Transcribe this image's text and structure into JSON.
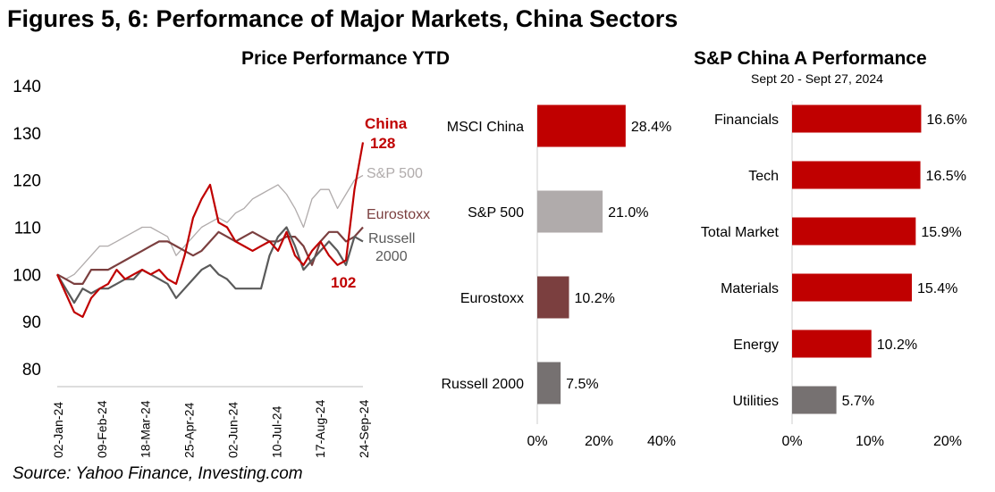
{
  "title": "Figures 5, 6: Performance of Major Markets, China Sectors",
  "source": "Source: Yahoo Finance, Investing.com",
  "chart_data": [
    {
      "type": "line",
      "title": "Price Performance YTD",
      "ylim": [
        80,
        140
      ],
      "yticks": [
        80,
        90,
        100,
        110,
        120,
        130,
        140
      ],
      "xticks": [
        "02-Jan-24",
        "09-Feb-24",
        "18-Mar-24",
        "25-Apr-24",
        "02-Jun-24",
        "10-Jul-24",
        "17-Aug-24",
        "24-Sep-24"
      ],
      "series": [
        {
          "name": "S&P 500",
          "color": "#b0abab",
          "values": [
            100,
            99,
            100,
            102,
            104,
            106,
            106,
            107,
            108,
            109,
            110,
            110,
            109,
            108,
            104,
            106,
            108,
            110,
            111,
            112,
            111,
            113,
            114,
            116,
            117,
            118,
            119,
            117,
            114,
            110,
            116,
            118,
            118,
            114,
            117,
            120,
            121
          ]
        },
        {
          "name": "Eurostoxx",
          "color": "#7b3f3f",
          "values": [
            100,
            99,
            98,
            98,
            101,
            101,
            101,
            102,
            103,
            104,
            105,
            106,
            107,
            107,
            106,
            105,
            104,
            105,
            107,
            109,
            108,
            107,
            108,
            109,
            108,
            107,
            107,
            108,
            108,
            106,
            102,
            107,
            109,
            109,
            107,
            108,
            110
          ]
        },
        {
          "name": "Russell 2000",
          "color": "#5a5a5a",
          "values": [
            100,
            97,
            94,
            97,
            96,
            97,
            97,
            98,
            99,
            99,
            101,
            100,
            99,
            98,
            95,
            97,
            99,
            101,
            102,
            100,
            99,
            97,
            97,
            97,
            97,
            104,
            108,
            110,
            106,
            101,
            103,
            105,
            107,
            105,
            102,
            108,
            107
          ]
        },
        {
          "name": "China",
          "color": "#c00000",
          "values": [
            100,
            96,
            92,
            91,
            95,
            97,
            98,
            101,
            99,
            100,
            101,
            100,
            101,
            99,
            98,
            104,
            112,
            116,
            119,
            111,
            110,
            107,
            106,
            105,
            106,
            107,
            105,
            109,
            104,
            102,
            105,
            107,
            104,
            102,
            103,
            118,
            128
          ]
        }
      ],
      "annotations": [
        {
          "label": "China",
          "color": "#c00000"
        },
        {
          "label": "128",
          "color": "#c00000"
        },
        {
          "label": "102",
          "color": "#c00000"
        },
        {
          "label": "S&P 500",
          "color": "#b0abab"
        },
        {
          "label": "Eurostoxx",
          "color": "#7b3f3f"
        },
        {
          "label": "Russell 2000",
          "color": "#5a5a5a"
        }
      ]
    },
    {
      "type": "bar",
      "title": "",
      "categories": [
        "MSCI China",
        "S&P 500",
        "Eurostoxx",
        "Russell 2000"
      ],
      "values": [
        28.4,
        21.0,
        10.2,
        7.5
      ],
      "labels": [
        "28.4%",
        "21.0%",
        "10.2%",
        "7.5%"
      ],
      "colors": [
        "#c00000",
        "#b0abab",
        "#7b3f3f",
        "#767171"
      ],
      "xlim": [
        0,
        40
      ],
      "xticks": [
        "0%",
        "20%",
        "40%"
      ]
    },
    {
      "type": "bar",
      "title": "S&P China A Performance",
      "subtitle": "Sept 20 - Sept 27, 2024",
      "categories": [
        "Financials",
        "Tech",
        "Total Market",
        "Materials",
        "Energy",
        "Utilities"
      ],
      "values": [
        16.6,
        16.5,
        15.9,
        15.4,
        10.2,
        5.7
      ],
      "labels": [
        "16.6%",
        "16.5%",
        "15.9%",
        "15.4%",
        "10.2%",
        "5.7%"
      ],
      "colors": [
        "#c00000",
        "#c00000",
        "#c00000",
        "#c00000",
        "#c00000",
        "#767171"
      ],
      "xlim": [
        0,
        20
      ],
      "xticks": [
        "0%",
        "10%",
        "20%"
      ]
    }
  ]
}
